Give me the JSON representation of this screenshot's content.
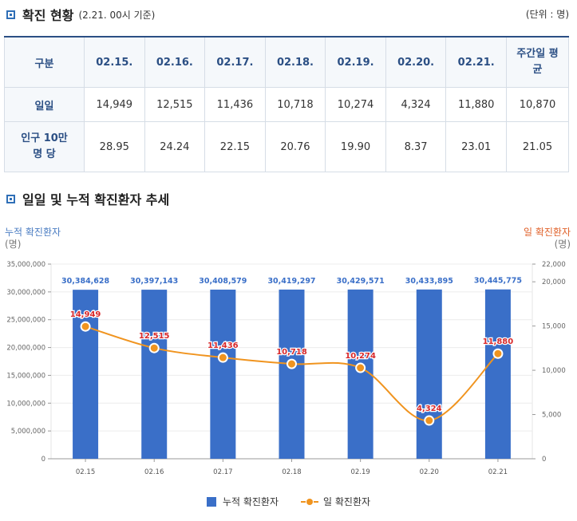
{
  "section1": {
    "title": "확진 현황",
    "subtitle": "(2.21. 00시 기준)",
    "unit": "(단위 : 명)"
  },
  "table": {
    "headers": [
      "구분",
      "02.15.",
      "02.16.",
      "02.17.",
      "02.18.",
      "02.19.",
      "02.20.",
      "02.21.",
      "주간일 평균"
    ],
    "rows": [
      {
        "label": "일일",
        "values": [
          "14,949",
          "12,515",
          "11,436",
          "10,718",
          "10,274",
          "4,324",
          "11,880",
          "10,870"
        ]
      },
      {
        "label": "인구 10만 명 당",
        "values": [
          "28.95",
          "24.24",
          "22.15",
          "20.76",
          "19.90",
          "8.37",
          "23.01",
          "21.05"
        ]
      }
    ]
  },
  "section2": {
    "title": "일일 및 누적 확진환자 추세"
  },
  "chart_data": {
    "type": "bar+line",
    "categories": [
      "02.15",
      "02.16",
      "02.17",
      "02.18",
      "02.19",
      "02.20",
      "02.21"
    ],
    "series": [
      {
        "name": "누적 확진환자",
        "type": "bar",
        "axis": "left",
        "values": [
          30384628,
          30397143,
          30408579,
          30419297,
          30429571,
          30433895,
          30445775
        ],
        "labels": [
          "30,384,628",
          "30,397,143",
          "30,408,579",
          "30,419,297",
          "30,429,571",
          "30,433,895",
          "30,445,775"
        ],
        "color": "#3a6fc8"
      },
      {
        "name": "일 확진환자",
        "type": "line",
        "axis": "right",
        "values": [
          14949,
          12515,
          11436,
          10718,
          10274,
          4324,
          11880
        ],
        "labels": [
          "14,949",
          "12,515",
          "11,436",
          "10,718",
          "10,274",
          "4,324",
          "11,880"
        ],
        "color": "#f0941f"
      }
    ],
    "left_axis": {
      "title": "누적 확진환자",
      "unit": "(명)",
      "ylim": [
        0,
        35000000
      ],
      "ticks": [
        0,
        5000000,
        10000000,
        15000000,
        20000000,
        25000000,
        30000000,
        35000000
      ],
      "tick_labels": [
        "0",
        "5,000,000",
        "10,000,000",
        "15,000,000",
        "20,000,000",
        "25,000,000",
        "30,000,000",
        "35,000,000"
      ]
    },
    "right_axis": {
      "title": "일 확진환자",
      "unit": "(명)",
      "ylim": [
        0,
        22000
      ],
      "ticks": [
        0,
        5000,
        10000,
        15000,
        20000,
        22000
      ],
      "tick_labels": [
        "0",
        "5,000",
        "10,000",
        "15,000",
        "20,000",
        "22,000"
      ]
    },
    "legend": [
      "누적 확진환자",
      "일 확진환자"
    ],
    "colors": {
      "bar": "#3a6fc8",
      "line": "#f0941f",
      "bar_label": "#3a6fc8",
      "line_label": "#d8282a"
    }
  }
}
